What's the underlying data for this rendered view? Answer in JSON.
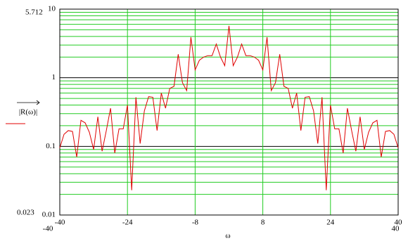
{
  "chart_data": {
    "type": "line",
    "y_label": "|R(ω)|",
    "x_label": "ω",
    "y_max_marker": 5.712,
    "y_min_marker": 0.023,
    "x_min_marker": -40,
    "x_max_marker": 40,
    "x": [
      -40,
      -39,
      -38,
      -37,
      -36,
      -35,
      -34,
      -33,
      -32,
      -31,
      -30,
      -29,
      -28,
      -27,
      -26,
      -25,
      -24,
      -23,
      -22,
      -21,
      -20,
      -19,
      -18,
      -17,
      -16,
      -15,
      -14,
      -13,
      -12,
      -11,
      -10,
      -9,
      -8,
      -7,
      -6,
      -5,
      -4,
      -3,
      -2,
      -1,
      0,
      1,
      2,
      3,
      4,
      5,
      6,
      7,
      8,
      9,
      10,
      11,
      12,
      13,
      14,
      15,
      16,
      17,
      18,
      19,
      20,
      21,
      22,
      23,
      24,
      25,
      26,
      27,
      28,
      29,
      30,
      31,
      32,
      33,
      34,
      35,
      36,
      37,
      38,
      39,
      40
    ],
    "series": [
      {
        "color": "#e00000",
        "values": [
          0.095,
          0.15,
          0.17,
          0.165,
          0.07,
          0.24,
          0.22,
          0.16,
          0.09,
          0.27,
          0.085,
          0.17,
          0.36,
          0.08,
          0.18,
          0.18,
          0.4,
          0.023,
          0.52,
          0.11,
          0.33,
          0.53,
          0.52,
          0.17,
          0.6,
          0.36,
          0.7,
          0.75,
          2.2,
          0.85,
          0.65,
          3.9,
          1.3,
          1.8,
          2.0,
          2.1,
          2.1,
          3.1,
          2.0,
          1.5,
          5.712,
          1.5,
          2.0,
          3.1,
          2.1,
          2.1,
          2.0,
          1.8,
          1.3,
          3.9,
          0.65,
          0.85,
          2.2,
          0.75,
          0.7,
          0.36,
          0.6,
          0.17,
          0.52,
          0.53,
          0.33,
          0.11,
          0.52,
          0.023,
          0.4,
          0.18,
          0.18,
          0.08,
          0.36,
          0.17,
          0.085,
          0.27,
          0.09,
          0.16,
          0.22,
          0.24,
          0.07,
          0.165,
          0.17,
          0.15,
          0.095
        ]
      }
    ],
    "xlim": [
      -40,
      40
    ],
    "xticks": [
      -40,
      -24,
      -8,
      8,
      24,
      40
    ],
    "ylim": [
      0.01,
      10
    ],
    "yticks": [
      0.01,
      0.1,
      1,
      10
    ],
    "log_y": true,
    "grid": true,
    "grid_color": "#22cc22",
    "major_grid_color": "#000000"
  }
}
